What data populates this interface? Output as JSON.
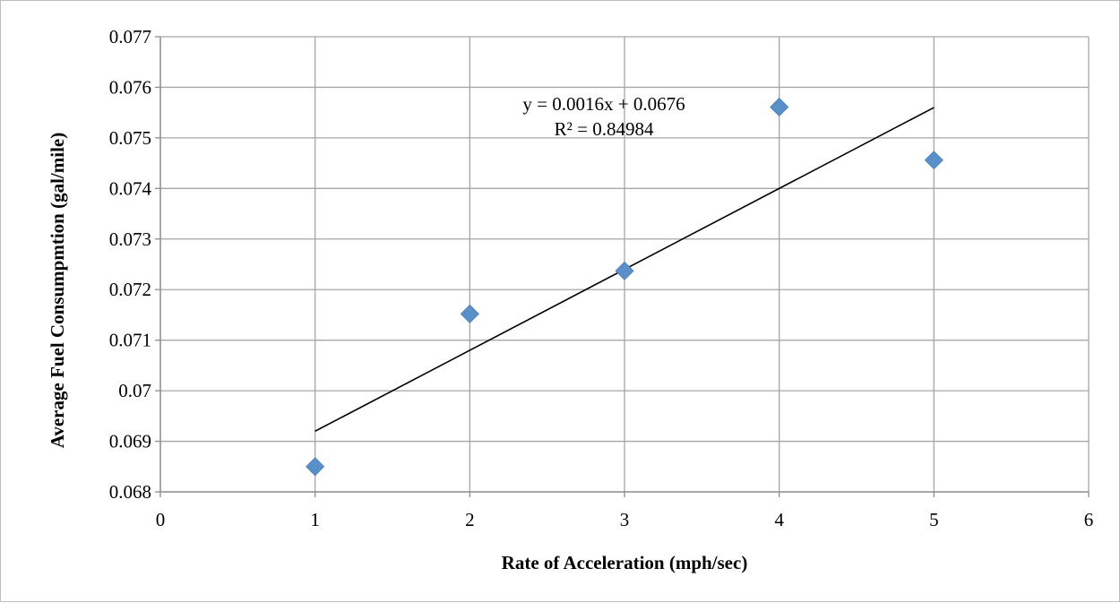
{
  "chart_data": {
    "type": "scatter",
    "title": "",
    "xlabel": "Rate of Acceleration (mph/sec)",
    "ylabel": "Average Fuel Consumpmtion (gal/mile)",
    "xlim": [
      0,
      6
    ],
    "ylim": [
      0.068,
      0.077
    ],
    "x_ticks": [
      0,
      1,
      2,
      3,
      4,
      5,
      6
    ],
    "y_ticks": [
      0.068,
      0.069,
      0.07,
      0.071,
      0.072,
      0.073,
      0.074,
      0.075,
      0.076,
      0.077
    ],
    "x_tick_labels": [
      "0",
      "1",
      "2",
      "3",
      "4",
      "5",
      "6"
    ],
    "y_tick_labels": [
      "0.068",
      "0.069",
      "0.07",
      "0.071",
      "0.072",
      "0.073",
      "0.074",
      "0.075",
      "0.076",
      "0.077"
    ],
    "grid": true,
    "legend": "none",
    "series": [
      {
        "x": [
          1,
          2,
          3,
          4,
          5
        ],
        "y": [
          0.0685,
          0.07152,
          0.07237,
          0.07561,
          0.07456
        ],
        "marker": "diamond",
        "color": "#5b8fc9"
      }
    ],
    "trendline": {
      "type": "linear",
      "slope": 0.0016,
      "intercept": 0.0676,
      "x_range": [
        1,
        5
      ],
      "color": "#000000",
      "equation_label": "y = 0.0016x + 0.0676",
      "r2_label": "R² = 0.84984"
    }
  }
}
